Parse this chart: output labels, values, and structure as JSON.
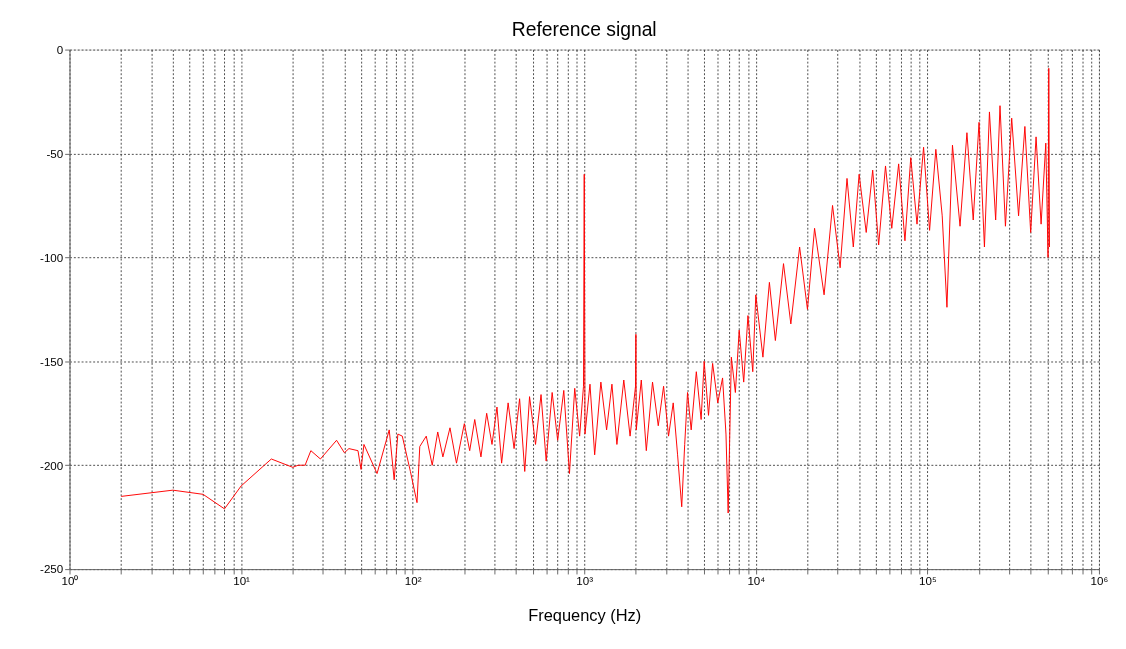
{
  "chart_data": {
    "type": "line",
    "title": "Reference signal",
    "xlabel": "Frequency (Hz)",
    "log": "x",
    "grid": true,
    "xlim": [
      1,
      1000000
    ],
    "xticks": [
      {
        "value": 1,
        "label": "10⁰"
      },
      {
        "value": 2,
        "label": null
      },
      {
        "value": 3,
        "label": null
      },
      {
        "value": 4,
        "label": null
      },
      {
        "value": 5,
        "label": null
      },
      {
        "value": 6,
        "label": null
      },
      {
        "value": 7,
        "label": null
      },
      {
        "value": 8,
        "label": null
      },
      {
        "value": 9,
        "label": null
      },
      {
        "value": 10,
        "label": "10¹"
      },
      {
        "value": 20,
        "label": null
      },
      {
        "value": 30,
        "label": null
      },
      {
        "value": 40,
        "label": null
      },
      {
        "value": 50,
        "label": null
      },
      {
        "value": 60,
        "label": null
      },
      {
        "value": 70,
        "label": null
      },
      {
        "value": 80,
        "label": null
      },
      {
        "value": 90,
        "label": null
      },
      {
        "value": 100,
        "label": "10²"
      },
      {
        "value": 200,
        "label": null
      },
      {
        "value": 300,
        "label": null
      },
      {
        "value": 400,
        "label": null
      },
      {
        "value": 500,
        "label": null
      },
      {
        "value": 600,
        "label": null
      },
      {
        "value": 700,
        "label": null
      },
      {
        "value": 800,
        "label": null
      },
      {
        "value": 900,
        "label": null
      },
      {
        "value": 1000,
        "label": "10³"
      },
      {
        "value": 2000,
        "label": null
      },
      {
        "value": 3000,
        "label": null
      },
      {
        "value": 4000,
        "label": null
      },
      {
        "value": 5000,
        "label": null
      },
      {
        "value": 6000,
        "label": null
      },
      {
        "value": 7000,
        "label": null
      },
      {
        "value": 8000,
        "label": null
      },
      {
        "value": 9000,
        "label": null
      },
      {
        "value": 10000,
        "label": "10⁴"
      },
      {
        "value": 20000,
        "label": null
      },
      {
        "value": 30000,
        "label": null
      },
      {
        "value": 40000,
        "label": null
      },
      {
        "value": 50000,
        "label": null
      },
      {
        "value": 60000,
        "label": null
      },
      {
        "value": 70000,
        "label": null
      },
      {
        "value": 80000,
        "label": null
      },
      {
        "value": 90000,
        "label": null
      },
      {
        "value": 100000,
        "label": "10⁵"
      },
      {
        "value": 200000,
        "label": null
      },
      {
        "value": 300000,
        "label": null
      },
      {
        "value": 400000,
        "label": null
      },
      {
        "value": 500000,
        "label": null
      },
      {
        "value": 600000,
        "label": null
      },
      {
        "value": 700000,
        "label": null
      },
      {
        "value": 800000,
        "label": null
      },
      {
        "value": 900000,
        "label": null
      },
      {
        "value": 1000000,
        "label": "10⁶"
      }
    ],
    "ylim": [
      -250,
      0
    ],
    "yticks": [
      -250,
      -200,
      -150,
      -100,
      -50,
      0
    ],
    "series": [
      {
        "color": "#ff0000",
        "x": [
          2,
          4,
          6,
          8,
          10,
          15,
          20,
          21.5,
          23.6,
          25.5,
          29,
          36,
          40,
          42.5,
          48,
          50,
          52,
          62,
          73,
          78,
          82,
          87,
          97,
          106,
          110,
          120,
          130,
          140,
          150,
          165,
          180,
          200,
          215,
          230,
          250,
          270,
          290,
          310,
          330,
          360,
          390,
          420,
          450,
          480,
          520,
          560,
          600,
          650,
          700,
          760,
          820,
          880,
          940,
          990,
          1000,
          1010,
          1080,
          1150,
          1250,
          1350,
          1450,
          1550,
          1700,
          1850,
          1990,
          2000,
          2010,
          2150,
          2300,
          2500,
          2700,
          2900,
          3100,
          3300,
          3500,
          3700,
          3850,
          4000,
          4200,
          4500,
          4800,
          5000,
          5300,
          5600,
          6000,
          6400,
          6700,
          6900,
          7200,
          7600,
          8000,
          8500,
          9000,
          9600,
          10000,
          11000,
          12000,
          13000,
          14500,
          16000,
          18000,
          20000,
          22000,
          25000,
          28000,
          31000,
          34000,
          37000,
          40000,
          44000,
          48000,
          52000,
          57000,
          62000,
          68000,
          74000,
          80000,
          87000,
          95000,
          103000,
          112000,
          122000,
          130000,
          140000,
          155000,
          170000,
          185000,
          200000,
          215000,
          230000,
          250000,
          265000,
          285000,
          310000,
          340000,
          370000,
          400000,
          430000,
          460000,
          490000,
          505000,
          510000,
          515000
        ],
        "values": [
          -215,
          -212,
          -214,
          -221,
          -210,
          -197,
          -201,
          -200,
          -200,
          -193,
          -197,
          -188,
          -194,
          -192,
          -193,
          -202,
          -190,
          -204,
          -183,
          -207,
          -185,
          -186,
          -203,
          -218,
          -191,
          -186,
          -200,
          -184,
          -196,
          -182,
          -199,
          -180,
          -193,
          -178,
          -196,
          -175,
          -190,
          -172,
          -199,
          -170,
          -192,
          -168,
          -203,
          -167,
          -190,
          -166,
          -198,
          -165,
          -188,
          -164,
          -204,
          -163,
          -186,
          -162,
          -60,
          -185,
          -161,
          -195,
          -160,
          -183,
          -161,
          -190,
          -159,
          -186,
          -162,
          -137,
          -183,
          -159,
          -193,
          -160,
          -181,
          -162,
          -186,
          -170,
          -195,
          -220,
          -190,
          -165,
          -183,
          -155,
          -178,
          -150,
          -176,
          -151,
          -170,
          -158,
          -185,
          -223,
          -148,
          -165,
          -135,
          -160,
          -128,
          -155,
          -118,
          -148,
          -112,
          -140,
          -103,
          -132,
          -95,
          -125,
          -86,
          -118,
          -75,
          -105,
          -62,
          -95,
          -60,
          -88,
          -58,
          -94,
          -56,
          -86,
          -55,
          -92,
          -52,
          -84,
          -47,
          -87,
          -48,
          -80,
          -124,
          -46,
          -85,
          -40,
          -82,
          -35,
          -95,
          -30,
          -82,
          -27,
          -85,
          -33,
          -80,
          -37,
          -88,
          -42,
          -84,
          -45,
          -100,
          -9,
          -95
        ]
      }
    ]
  }
}
